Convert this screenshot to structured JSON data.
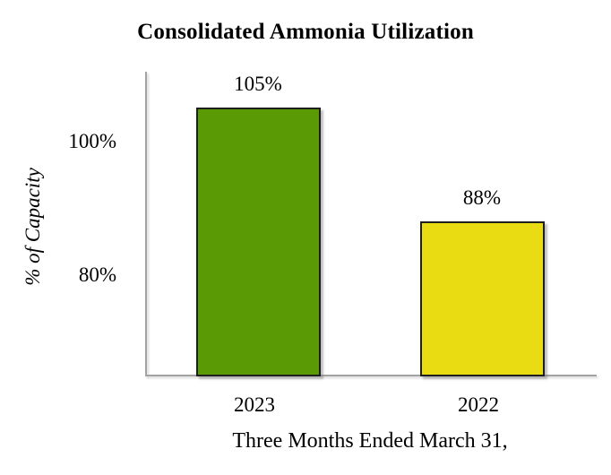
{
  "chart_data": {
    "type": "bar",
    "title": "Consolidated Ammonia Utilization",
    "xlabel": "Three Months Ended March 31,",
    "ylabel": "% of Capacity",
    "categories": [
      "2023",
      "2022"
    ],
    "values": [
      105,
      88
    ],
    "value_labels": [
      "105%",
      "88%"
    ],
    "bar_colors": [
      "#5a9a05",
      "#e9dc13"
    ],
    "bar_border_color": "#1f1f1f",
    "axis_line_color": "#a3a3a3",
    "yticks": [
      {
        "value": 100,
        "label": "100%"
      },
      {
        "value": 80,
        "label": "80%"
      }
    ],
    "ylim": [
      65,
      110.4
    ],
    "grid": false,
    "legend": false
  }
}
